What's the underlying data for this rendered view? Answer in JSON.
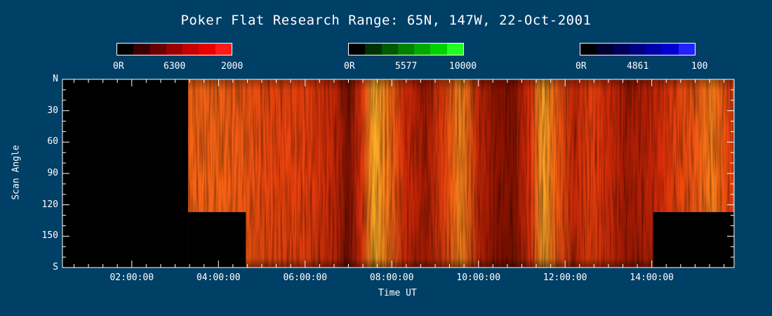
{
  "title": "Poker Flat Research Range: 65N, 147W, 22-Oct-2001",
  "colorbars": [
    {
      "min_label": "0R",
      "mid_label": "6300",
      "max_label": "2000",
      "colors": [
        "#000000",
        "#3a0000",
        "#6a0000",
        "#9a0000",
        "#c60000",
        "#e80000",
        "#ff1a1a"
      ]
    },
    {
      "min_label": "0R",
      "mid_label": "5577",
      "max_label": "10000",
      "colors": [
        "#000000",
        "#003200",
        "#005a00",
        "#008200",
        "#00aa00",
        "#00d200",
        "#22ff22"
      ]
    },
    {
      "min_label": "0R",
      "mid_label": "4861",
      "max_label": "100",
      "colors": [
        "#000000",
        "#000032",
        "#00005a",
        "#000082",
        "#0000aa",
        "#0000d2",
        "#2222ff"
      ]
    }
  ],
  "chart_data": {
    "type": "heatmap",
    "title": "Poker Flat Research Range: 65N, 147W, 22-Oct-2001",
    "xlabel": "Time UT",
    "ylabel": "Scan Angle",
    "x_ticks": [
      "02:00:00",
      "04:00:00",
      "06:00:00",
      "08:00:00",
      "10:00:00",
      "12:00:00",
      "14:00:00"
    ],
    "y_ticks": [
      "N",
      "30",
      "60",
      "90",
      "120",
      "150",
      "S"
    ],
    "x_range_hours": [
      0.4,
      15.9
    ],
    "y_range": [
      0,
      180
    ],
    "no_data_regions": [
      {
        "from": "00:24",
        "to": "03:18",
        "angles": [
          0,
          180
        ]
      },
      {
        "from": "03:18",
        "to": "04:38",
        "angles": [
          127,
          180
        ]
      },
      {
        "from": "14:02",
        "to": "15:54",
        "angles": [
          127,
          180
        ]
      }
    ],
    "brightness_profile": {
      "hours": [
        3.3,
        4.0,
        4.6,
        5.2,
        6.0,
        6.7,
        7.0,
        7.3,
        7.6,
        7.9,
        8.3,
        8.8,
        9.2,
        9.6,
        10.0,
        10.4,
        10.8,
        11.2,
        11.5,
        11.8,
        12.2,
        12.6,
        13.0,
        13.4,
        13.8,
        14.2,
        14.6,
        15.0,
        15.4,
        15.8
      ],
      "levels": [
        0.72,
        0.72,
        0.68,
        0.62,
        0.6,
        0.45,
        0.22,
        0.55,
        0.92,
        0.78,
        0.5,
        0.35,
        0.6,
        0.82,
        0.45,
        0.3,
        0.25,
        0.55,
        0.9,
        0.7,
        0.45,
        0.6,
        0.5,
        0.35,
        0.4,
        0.5,
        0.62,
        0.68,
        0.8,
        0.6
      ]
    }
  }
}
